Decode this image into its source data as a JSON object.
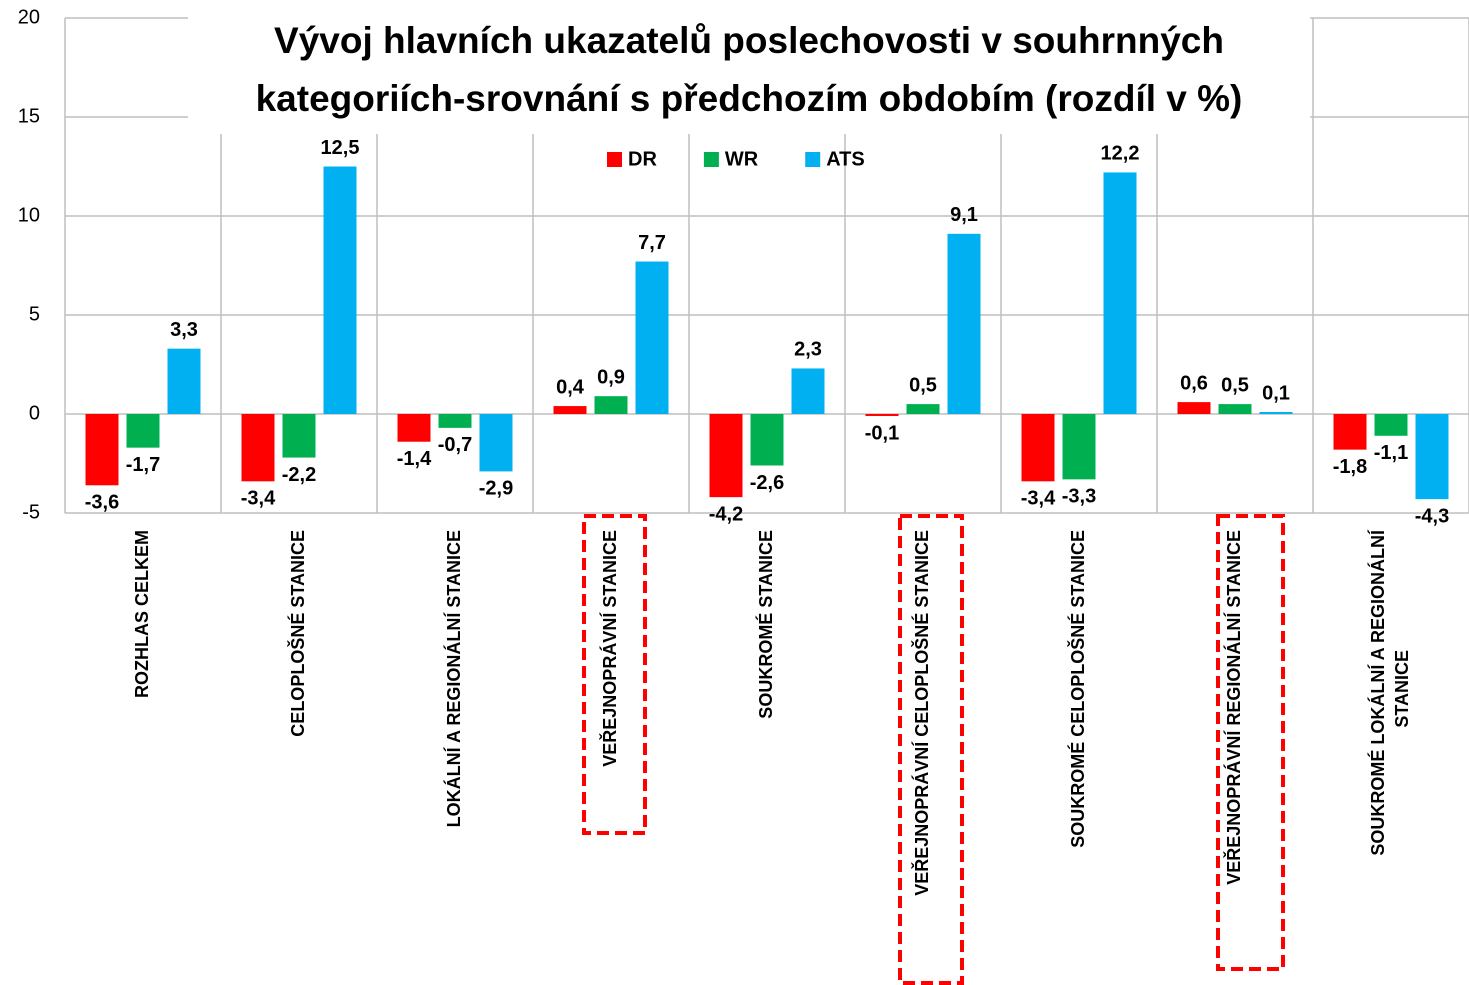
{
  "chart_data": {
    "type": "bar",
    "title": "Vývoj hlavních ukazatelů poslechovosti v souhrnných kategoriích-srovnání s předchozím obdobím (rozdíl v %)",
    "categories": [
      "ROZHLAS CELKEM",
      "CELOPLOŠNÉ STANICE",
      "LOKÁLNÍ A REGIONÁLNÍ STANICE",
      "VEŘEJNOPRÁVNÍ STANICE",
      "SOUKROMÉ STANICE",
      "VEŘEJNOPRÁVNÍ CELOPLOŠNÉ STANICE",
      "SOUKROMÉ CELOPLOŠNÉ STANICE",
      "VEŘEJNOPRÁVNÍ REGIONÁLNÍ STANICE",
      "SOUKROMÉ LOKÁLNÍ A REGIONÁLNÍ STANICE"
    ],
    "series": [
      {
        "name": "DR",
        "color": "#ff0000",
        "values": [
          -3.6,
          -3.4,
          -1.4,
          0.4,
          -4.2,
          -0.1,
          -3.4,
          0.6,
          -1.8
        ],
        "value_labels": [
          "-3,6",
          "-3,4",
          "-1,4",
          "0,4",
          "-4,2",
          "-0,1",
          "-3,4",
          "0,6",
          "-1,8"
        ]
      },
      {
        "name": "WR",
        "color": "#00b050",
        "values": [
          -1.7,
          -2.2,
          -0.7,
          0.9,
          -2.6,
          0.5,
          -3.3,
          0.5,
          -1.1
        ],
        "value_labels": [
          "-1,7",
          "-2,2",
          "-0,7",
          "0,9",
          "-2,6",
          "0,5",
          "-3,3",
          "0,5",
          "-1,1"
        ]
      },
      {
        "name": "ATS",
        "color": "#00b0f0",
        "values": [
          3.3,
          12.5,
          -2.9,
          7.7,
          2.3,
          9.1,
          12.2,
          0.1,
          -4.3
        ],
        "value_labels": [
          "3,3",
          "12,5",
          "-2,9",
          "7,7",
          "2,3",
          "9,1",
          "12,2",
          "0,1",
          "-4,3"
        ]
      }
    ],
    "ylim": [
      -5,
      20
    ],
    "yticks": [
      -5,
      0,
      5,
      10,
      15,
      20
    ],
    "grid": true,
    "legend": "top"
  }
}
